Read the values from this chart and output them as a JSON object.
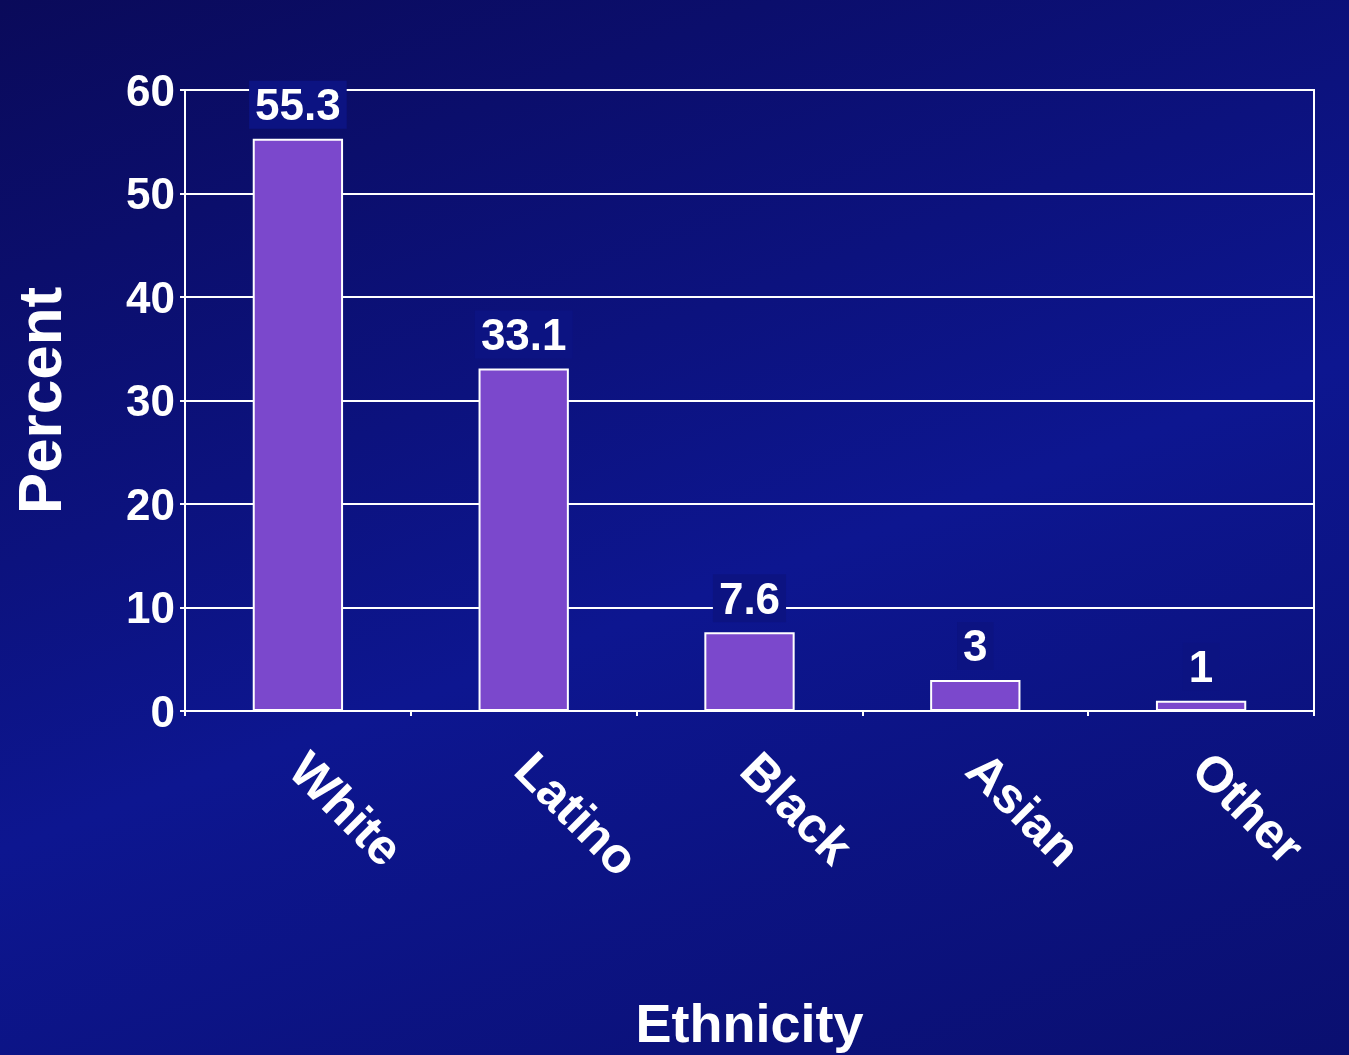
{
  "chart_data": {
    "type": "bar",
    "xlabel": "Ethnicity",
    "ylabel": "Percent",
    "categories": [
      "White",
      "Latino",
      "Black",
      "Asian",
      "Other"
    ],
    "values": [
      55.3,
      33.1,
      7.6,
      3,
      1
    ],
    "color": "#7b48cc",
    "ylim": [
      0,
      60
    ],
    "yticks": [
      0,
      10,
      20,
      30,
      40,
      50,
      60
    ],
    "grid": "y",
    "data_labels": true
  }
}
